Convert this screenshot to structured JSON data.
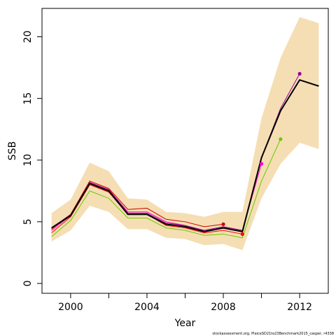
{
  "chart_data": {
    "type": "line",
    "xlabel": "Year",
    "ylabel": "SSB",
    "xlim": [
      1998.5,
      2013.5
    ],
    "ylim": [
      -0.8,
      22.3
    ],
    "x_ticks": [
      2000,
      2002,
      2004,
      2006,
      2008,
      2010,
      2012
    ],
    "x_tick_labels": [
      "2000",
      "",
      "2004",
      "",
      "2008",
      "",
      "2012"
    ],
    "y_ticks": [
      0,
      5,
      10,
      15,
      20
    ],
    "y_tick_labels": [
      "0",
      "5",
      "10",
      "15",
      "20"
    ],
    "footnote": "stockassessment.org, PlaiceSD21to23Benchmark2015_casper, r4338",
    "confidence_band": {
      "color": "#f5deb3",
      "x": [
        1999,
        2000,
        2001,
        2002,
        2003,
        2004,
        2005,
        2006,
        2007,
        2008,
        2009,
        2010,
        2011,
        2012,
        2013
      ],
      "upper": [
        5.7,
        6.8,
        9.8,
        9.1,
        6.9,
        6.8,
        5.8,
        5.7,
        5.4,
        5.8,
        5.8,
        13.4,
        18.3,
        21.6,
        21.1
      ],
      "lower": [
        3.4,
        4.3,
        6.3,
        5.8,
        4.4,
        4.4,
        3.7,
        3.6,
        3.1,
        3.2,
        2.7,
        6.9,
        9.7,
        11.4,
        10.9
      ]
    },
    "series": [
      {
        "color": "#000000",
        "width": 2,
        "x": [
          1999,
          2000,
          2001,
          2002,
          2003,
          2004,
          2005,
          2006,
          2007,
          2008,
          2009,
          2010,
          2011,
          2012,
          2013
        ],
        "values": [
          4.5,
          5.5,
          8.1,
          7.5,
          5.6,
          5.6,
          4.8,
          4.6,
          4.2,
          4.5,
          4.2,
          10.2,
          14.0,
          16.5,
          16.0
        ]
      },
      {
        "color": "#66cc00",
        "width": 1,
        "end_marker": true,
        "x": [
          1999,
          2000,
          2001,
          2002,
          2003,
          2004,
          2005,
          2006,
          2007,
          2008,
          2009,
          2010,
          2011
        ],
        "values": [
          3.8,
          5.1,
          7.5,
          6.9,
          5.3,
          5.3,
          4.5,
          4.3,
          3.9,
          4.0,
          3.7,
          8.3,
          11.7
        ]
      },
      {
        "color": "#ff0000",
        "width": 1,
        "end_marker": true,
        "x": [
          1999,
          2000,
          2001,
          2002,
          2003,
          2004,
          2005,
          2006,
          2007,
          2008,
          2009
        ],
        "values": [
          4.1,
          5.4,
          8.0,
          7.4,
          5.6,
          5.6,
          4.7,
          4.5,
          4.1,
          4.3,
          4.0
        ]
      },
      {
        "color": "#ff00cc",
        "width": 1,
        "end_marker": true,
        "x": [
          1999,
          2000,
          2001,
          2002,
          2003,
          2004,
          2005,
          2006,
          2007,
          2008,
          2009,
          2010
        ],
        "values": [
          4.3,
          5.5,
          8.2,
          7.6,
          5.8,
          5.8,
          5.0,
          4.7,
          4.3,
          4.6,
          4.3,
          9.7
        ]
      },
      {
        "color": "#990099",
        "width": 1,
        "end_marker": true,
        "x": [
          1999,
          2000,
          2001,
          2002,
          2003,
          2004,
          2005,
          2006,
          2007,
          2008,
          2009,
          2010,
          2011,
          2012
        ],
        "values": [
          4.5,
          5.6,
          8.2,
          7.6,
          5.7,
          5.7,
          4.9,
          4.7,
          4.3,
          4.6,
          4.3,
          10.2,
          14.2,
          17.0
        ]
      },
      {
        "color": "#cc0000",
        "width": 1,
        "end_marker": true,
        "x": [
          1999,
          2000,
          2001,
          2002,
          2003,
          2004,
          2005,
          2006,
          2007,
          2008
        ],
        "values": [
          4.4,
          5.6,
          8.3,
          7.7,
          6.0,
          6.1,
          5.2,
          5.0,
          4.6,
          4.8
        ]
      }
    ]
  }
}
